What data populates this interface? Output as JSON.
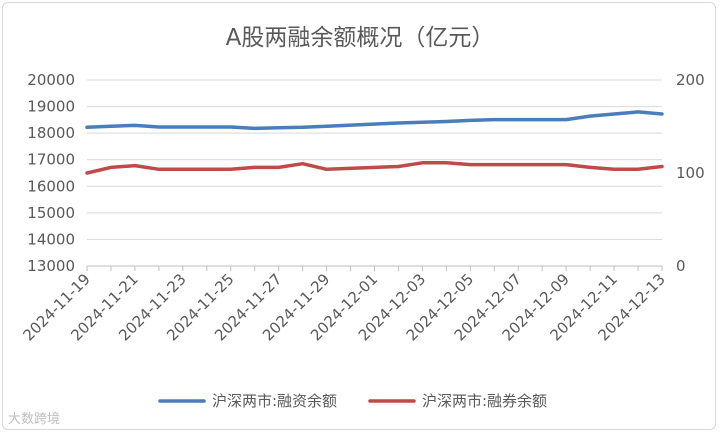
{
  "chart_data": {
    "type": "line",
    "title": "A股两融余额概况（亿元）",
    "x_tick_labels": [
      "2024-11-19",
      "2024-11-21",
      "2024-11-23",
      "2024-11-25",
      "2024-11-27",
      "2024-11-29",
      "2024-12-01",
      "2024-12-03",
      "2024-12-05",
      "2024-12-07",
      "2024-12-09",
      "2024-12-11",
      "2024-12-13"
    ],
    "x_range": [
      "2024-11-19",
      "2024-12-13"
    ],
    "y_left": {
      "min": 13000,
      "max": 20000,
      "ticks": [
        13000,
        14000,
        15000,
        16000,
        17000,
        18000,
        19000,
        20000
      ]
    },
    "y_right": {
      "min": 0,
      "max": 200,
      "ticks": [
        0,
        100,
        200
      ]
    },
    "grid": true,
    "legend_position": "bottom",
    "series": [
      {
        "name": "沪深两市:融资余额",
        "axis": "left",
        "color": "#4a7ebb",
        "points": [
          [
            "2024-11-19",
            18220
          ],
          [
            "2024-11-20",
            18260
          ],
          [
            "2024-11-21",
            18290
          ],
          [
            "2024-11-22",
            18230
          ],
          [
            "2024-11-25",
            18230
          ],
          [
            "2024-11-26",
            18180
          ],
          [
            "2024-11-27",
            18200
          ],
          [
            "2024-11-28",
            18220
          ],
          [
            "2024-11-29",
            18260
          ],
          [
            "2024-12-02",
            18380
          ],
          [
            "2024-12-03",
            18410
          ],
          [
            "2024-12-04",
            18440
          ],
          [
            "2024-12-05",
            18480
          ],
          [
            "2024-12-06",
            18510
          ],
          [
            "2024-12-09",
            18510
          ],
          [
            "2024-12-10",
            18640
          ],
          [
            "2024-12-11",
            18720
          ],
          [
            "2024-12-12",
            18800
          ],
          [
            "2024-12-13",
            18720
          ]
        ]
      },
      {
        "name": "沪深两市:融券余额",
        "axis": "right",
        "color": "#be4b48",
        "points": [
          [
            "2024-11-19",
            100
          ],
          [
            "2024-11-20",
            106
          ],
          [
            "2024-11-21",
            108
          ],
          [
            "2024-11-22",
            104
          ],
          [
            "2024-11-25",
            104
          ],
          [
            "2024-11-26",
            106
          ],
          [
            "2024-11-27",
            106
          ],
          [
            "2024-11-28",
            110
          ],
          [
            "2024-11-29",
            104
          ],
          [
            "2024-12-02",
            107
          ],
          [
            "2024-12-03",
            111
          ],
          [
            "2024-12-04",
            111
          ],
          [
            "2024-12-05",
            109
          ],
          [
            "2024-12-06",
            109
          ],
          [
            "2024-12-09",
            109
          ],
          [
            "2024-12-10",
            106
          ],
          [
            "2024-12-11",
            104
          ],
          [
            "2024-12-12",
            104
          ],
          [
            "2024-12-13",
            107
          ]
        ]
      }
    ]
  },
  "watermark": "大数跨境"
}
